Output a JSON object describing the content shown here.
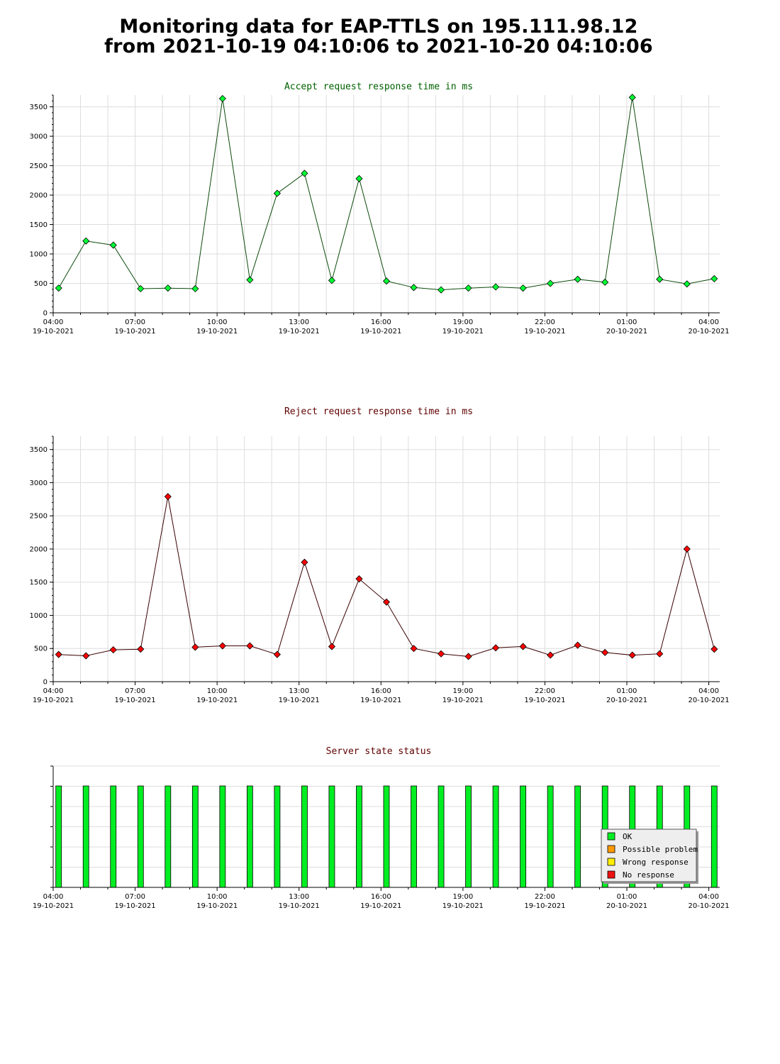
{
  "page": {
    "title_line1": "Monitoring data for EAP-TTLS on 195.111.98.12",
    "title_line2": "from 2021-10-19 04:10:06 to 2021-10-20 04:10:06"
  },
  "colors": {
    "accept_line": "#0b4a0b",
    "accept_marker": "#00ff33",
    "accept_title": "#006000",
    "reject_line": "#3a0000",
    "reject_marker": "#ff0000",
    "reject_title": "#600000",
    "status_title": "#600000",
    "grid": "#dddddd",
    "ok": "#00ee22",
    "possible_problem": "#ff9900",
    "wrong_response": "#ffee00",
    "no_response": "#ee1111"
  },
  "chart_data": [
    {
      "type": "line",
      "title": "Accept request response time in ms",
      "x_hours": [
        0.2,
        1.2,
        2.2,
        3.2,
        4.2,
        5.2,
        6.2,
        7.2,
        8.2,
        9.2,
        10.2,
        11.2,
        12.2,
        13.2,
        14.2,
        15.2,
        16.2,
        17.2,
        18.2,
        19.2,
        20.2,
        21.2,
        22.2,
        23.2,
        24.2
      ],
      "values": [
        420,
        1220,
        1150,
        410,
        420,
        410,
        3640,
        560,
        2030,
        2370,
        550,
        2280,
        540,
        430,
        390,
        420,
        440,
        420,
        500,
        570,
        520,
        3660,
        570,
        490,
        580
      ],
      "ylim": [
        0,
        3700
      ],
      "yticks": [
        0,
        500,
        1000,
        1500,
        2000,
        2500,
        3000,
        3500
      ],
      "grid": true
    },
    {
      "type": "line",
      "title": "Reject request response time in ms",
      "x_hours": [
        0.2,
        1.2,
        2.2,
        3.2,
        4.2,
        5.2,
        6.2,
        7.2,
        8.2,
        9.2,
        10.2,
        11.2,
        12.2,
        13.2,
        14.2,
        15.2,
        16.2,
        17.2,
        18.2,
        19.2,
        20.2,
        21.2,
        22.2,
        23.2,
        24.2
      ],
      "values": [
        410,
        390,
        480,
        490,
        2790,
        520,
        540,
        540,
        410,
        1800,
        530,
        1550,
        1200,
        500,
        420,
        380,
        510,
        530,
        400,
        550,
        440,
        400,
        420,
        2000,
        490
      ],
      "ylim": [
        0,
        3700
      ],
      "yticks": [
        0,
        500,
        1000,
        1500,
        2000,
        2500,
        3000,
        3500
      ],
      "grid": true
    },
    {
      "type": "bar",
      "title": "Server state status",
      "x_hours": [
        0.2,
        1.2,
        2.2,
        3.2,
        4.2,
        5.2,
        6.2,
        7.2,
        8.2,
        9.2,
        10.2,
        11.2,
        12.2,
        13.2,
        14.2,
        15.2,
        16.2,
        17.2,
        18.2,
        19.2,
        20.2,
        21.2,
        22.2,
        23.2,
        24.2
      ],
      "states": [
        "OK",
        "OK",
        "OK",
        "OK",
        "OK",
        "OK",
        "OK",
        "OK",
        "OK",
        "OK",
        "OK",
        "OK",
        "OK",
        "OK",
        "OK",
        "OK",
        "OK",
        "OK",
        "OK",
        "OK",
        "OK",
        "OK",
        "OK",
        "OK",
        "OK"
      ],
      "legend": [
        "OK",
        "Possible problem",
        "Wrong response",
        "No response"
      ],
      "legend_position": "bottom-right"
    }
  ],
  "x_axis": {
    "range_hours": [
      0,
      24.4
    ],
    "ticks": [
      {
        "h": 0,
        "time": "04:00",
        "date": "19-10-2021"
      },
      {
        "h": 3,
        "time": "07:00",
        "date": "19-10-2021"
      },
      {
        "h": 6,
        "time": "10:00",
        "date": "19-10-2021"
      },
      {
        "h": 9,
        "time": "13:00",
        "date": "19-10-2021"
      },
      {
        "h": 12,
        "time": "16:00",
        "date": "19-10-2021"
      },
      {
        "h": 15,
        "time": "19:00",
        "date": "19-10-2021"
      },
      {
        "h": 18,
        "time": "22:00",
        "date": "19-10-2021"
      },
      {
        "h": 21,
        "time": "01:00",
        "date": "20-10-2021"
      },
      {
        "h": 24,
        "time": "04:00",
        "date": "20-10-2021"
      }
    ]
  }
}
